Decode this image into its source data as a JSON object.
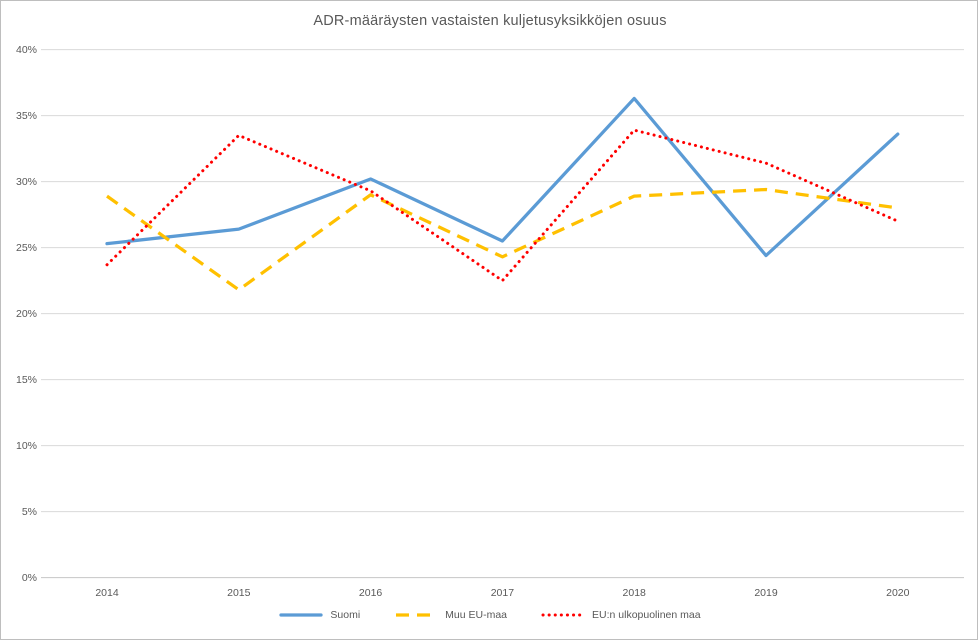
{
  "title": "ADR-määräysten vastaisten kuljetusyksikköjen osuus",
  "chart_data": {
    "type": "line",
    "categories": [
      "2014",
      "2015",
      "2016",
      "2017",
      "2018",
      "2019",
      "2020"
    ],
    "series": [
      {
        "name": "Suomi",
        "color": "#5B9BD5",
        "style": "solid",
        "values": [
          25.3,
          26.4,
          30.2,
          25.5,
          36.3,
          24.4,
          33.6
        ]
      },
      {
        "name": "Muu EU-maa",
        "color": "#FFC000",
        "style": "dashed",
        "values": [
          28.9,
          21.8,
          29.0,
          24.3,
          28.9,
          29.4,
          28.0
        ]
      },
      {
        "name": "EU:n ulkopuolinen maa",
        "color": "#FF0000",
        "style": "dotted",
        "values": [
          23.7,
          33.5,
          29.3,
          22.5,
          33.9,
          31.4,
          27.0
        ]
      }
    ],
    "title": "ADR-määräysten vastaisten kuljetusyksikköjen osuus",
    "xlabel": "",
    "ylabel": "",
    "ylim": [
      0,
      40
    ],
    "ytick_step": 5,
    "ytick_labels": [
      "0%",
      "5%",
      "10%",
      "15%",
      "20%",
      "25%",
      "30%",
      "35%",
      "40%"
    ],
    "grid": true,
    "legend_position": "bottom"
  },
  "colors": {
    "gridline": "#D9D9D9",
    "axis_line": "#C6C6C6",
    "tick_text": "#595959",
    "title_text": "#595959",
    "legend_text": "#595959",
    "background": "#FFFFFF"
  }
}
